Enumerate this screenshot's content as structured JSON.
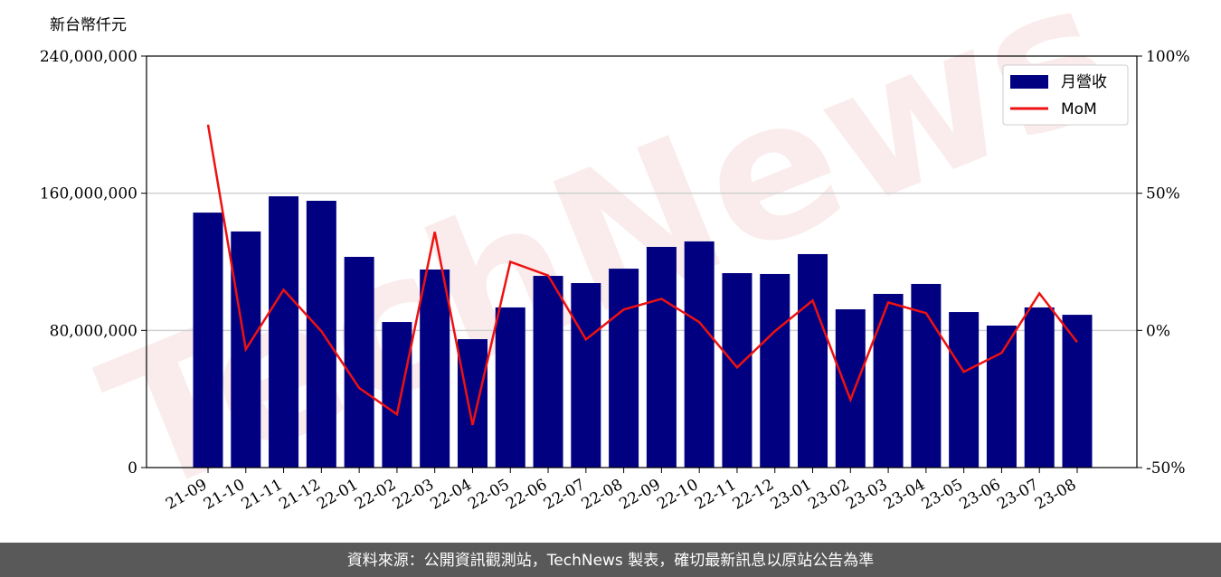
{
  "chart_data": {
    "type": "bar_line",
    "y_label": "新台幣仟元",
    "watermark": "TechNews",
    "footer": "資料來源：公開資訊觀測站，TechNews 製表，確切最新訊息以原站公告為準",
    "categories": [
      "21-09",
      "21-10",
      "21-11",
      "21-12",
      "22-01",
      "22-02",
      "22-03",
      "22-04",
      "22-05",
      "22-06",
      "22-07",
      "22-08",
      "22-09",
      "22-10",
      "22-11",
      "22-12",
      "23-01",
      "23-02",
      "23-03",
      "23-04",
      "23-05",
      "23-06",
      "23-07",
      "23-08"
    ],
    "series": [
      {
        "name": "月營收",
        "type": "bar",
        "color": "#000080",
        "values": [
          148700000,
          137700000,
          158200000,
          155600000,
          122900000,
          84900000,
          115500000,
          74900000,
          93400000,
          111800000,
          107600000,
          116000000,
          128700000,
          131900000,
          113400000,
          112900000,
          124500000,
          92300000,
          101300000,
          107100000,
          90700000,
          82800000,
          93400000,
          89100000
        ]
      },
      {
        "name": "MoM",
        "type": "line",
        "color": "#ee1111",
        "axis": "y2",
        "values": [
          75,
          -6.9,
          14.8,
          -0.3,
          -21,
          -30.6,
          35.9,
          -34.5,
          25,
          20,
          -3.3,
          7.6,
          11.5,
          3,
          -13.5,
          -0.3,
          10.9,
          -25.3,
          10.2,
          6.3,
          -15.1,
          -8.2,
          13.5,
          -4.3
        ]
      }
    ],
    "ylim": [
      0,
      240000000
    ],
    "yticks": [
      {
        "value": 0,
        "label": "0"
      },
      {
        "value": 80000000,
        "label": "80,000,000"
      },
      {
        "value": 160000000,
        "label": "160,000,000"
      },
      {
        "value": 240000000,
        "label": "240,000,000"
      }
    ],
    "y2lim": [
      -50,
      100
    ],
    "y2ticks": [
      {
        "value": -50,
        "label": "-50%"
      },
      {
        "value": 0,
        "label": "0%"
      },
      {
        "value": 50,
        "label": "50%"
      },
      {
        "value": 100,
        "label": "100%"
      }
    ],
    "grid": true,
    "legend": "upper right"
  }
}
